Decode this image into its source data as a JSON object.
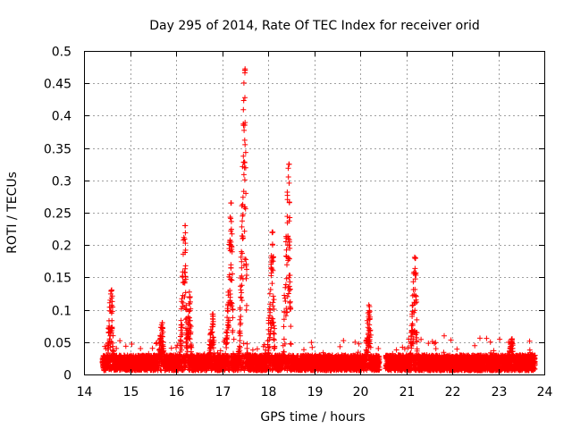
{
  "chart_data": {
    "type": "scatter",
    "title": "Day 295 of 2014, Rate Of TEC Index for receiver orid",
    "xlabel": "GPS time / hours",
    "ylabel": "ROTI / TECUs",
    "xlim": [
      14,
      24
    ],
    "ylim": [
      0,
      0.5
    ],
    "x_ticks": [
      14,
      15,
      16,
      17,
      18,
      19,
      20,
      21,
      22,
      23,
      24
    ],
    "y_ticks": [
      0,
      0.05,
      0.1,
      0.15,
      0.2,
      0.25,
      0.3,
      0.35,
      0.4,
      0.45,
      0.5
    ],
    "x_tick_labels": [
      "14",
      "15",
      "16",
      "17",
      "18",
      "19",
      "20",
      "21",
      "22",
      "23",
      "24"
    ],
    "y_tick_labels": [
      "0",
      "0.05",
      "0.1",
      "0.15",
      "0.2",
      "0.25",
      "0.3",
      "0.35",
      "0.4",
      "0.45",
      "0.5"
    ],
    "grid": true,
    "marker": "+",
    "color": "#ff0000",
    "data_range_x": [
      14.4,
      23.8
    ],
    "baseline_level": 0.02,
    "peaks": [
      {
        "x": 14.6,
        "y": 0.13
      },
      {
        "x": 15.7,
        "y": 0.08
      },
      {
        "x": 16.2,
        "y": 0.23
      },
      {
        "x": 16.3,
        "y": 0.12
      },
      {
        "x": 16.8,
        "y": 0.09
      },
      {
        "x": 17.2,
        "y": 0.265
      },
      {
        "x": 17.5,
        "y": 0.47
      },
      {
        "x": 18.1,
        "y": 0.22
      },
      {
        "x": 18.45,
        "y": 0.325
      },
      {
        "x": 20.2,
        "y": 0.105
      },
      {
        "x": 21.2,
        "y": 0.18
      },
      {
        "x": 23.3,
        "y": 0.055
      }
    ]
  }
}
